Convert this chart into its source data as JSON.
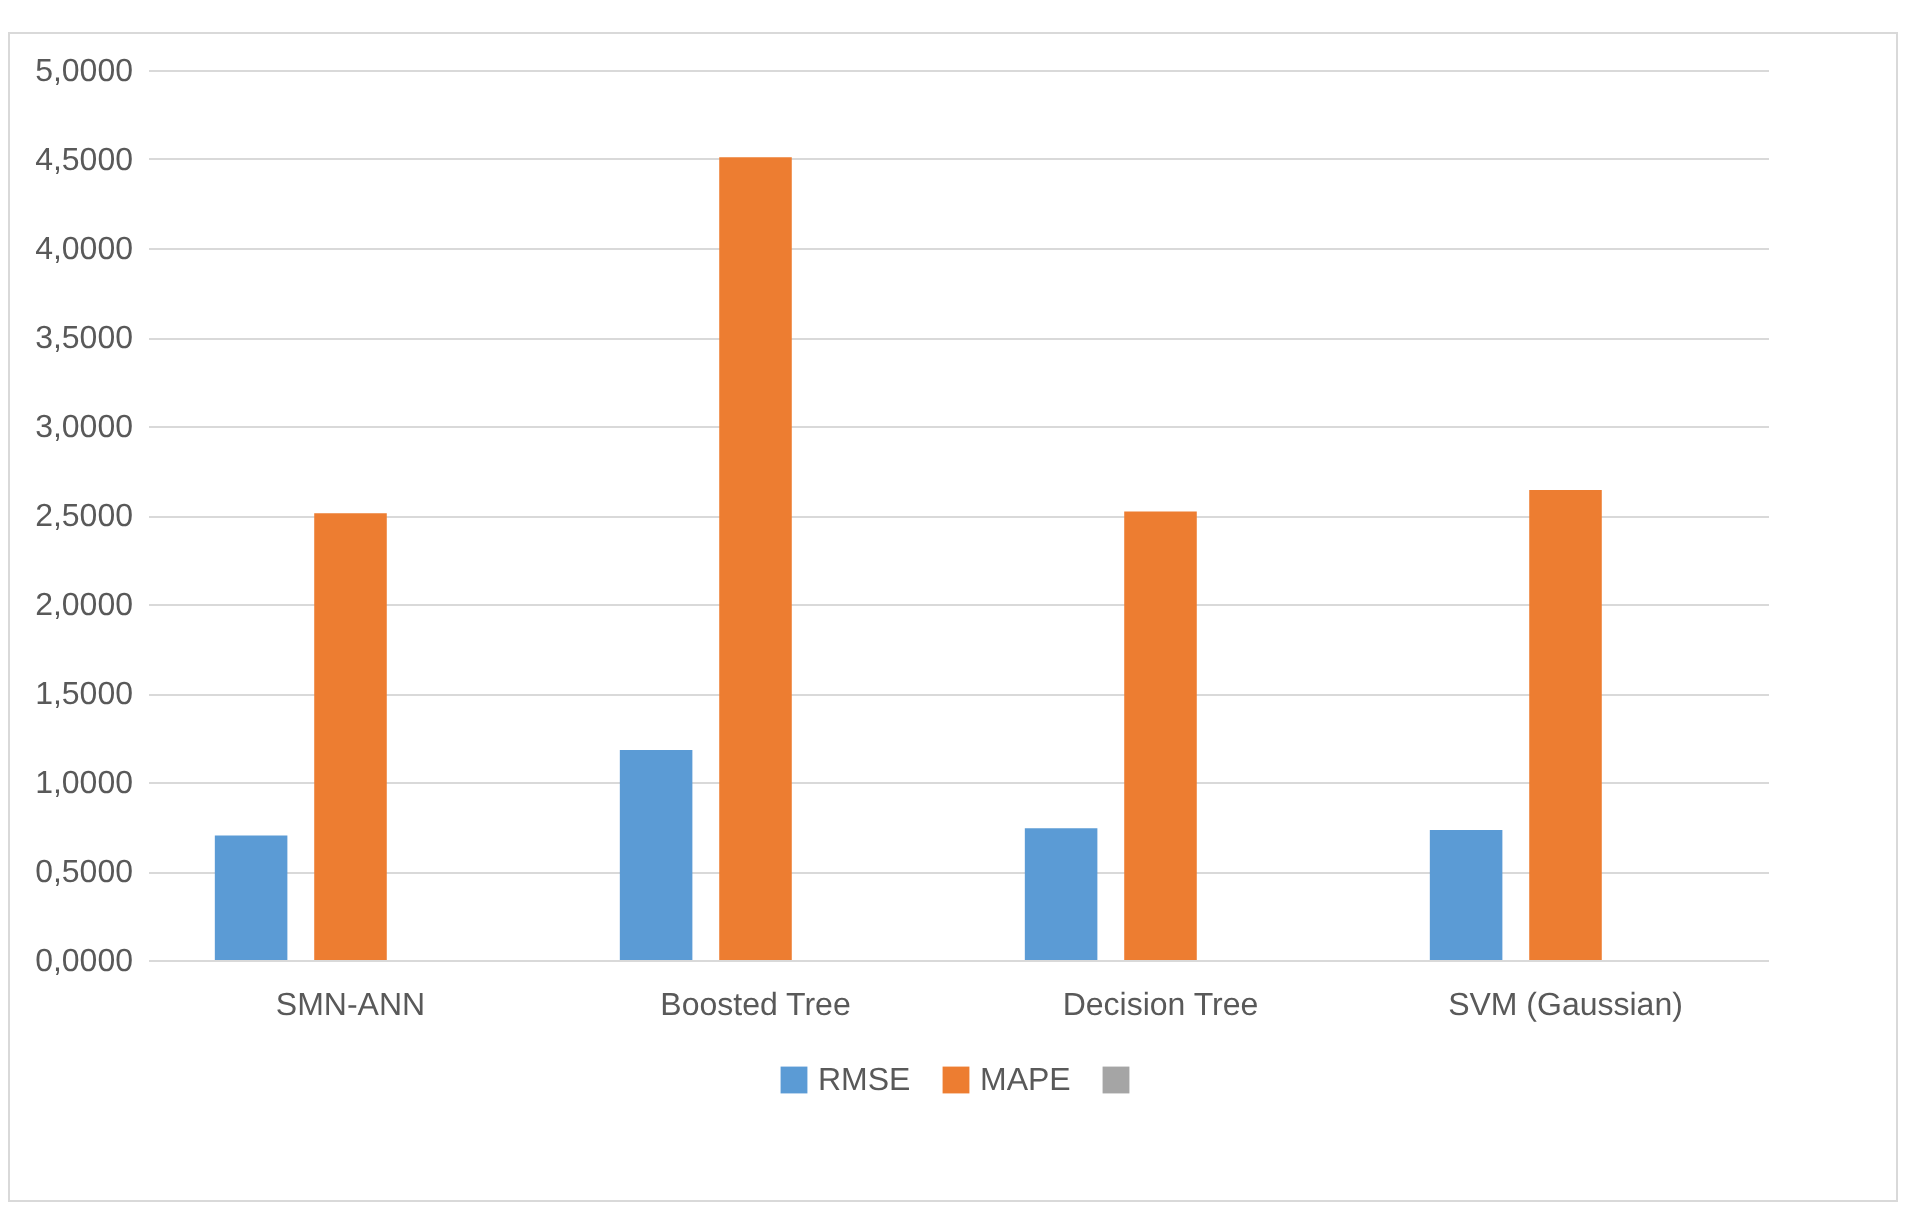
{
  "chart_data": {
    "type": "bar",
    "categories": [
      "SMN-ANN",
      "Boosted Tree",
      "Decision Tree",
      "SVM (Gaussian)"
    ],
    "series": [
      {
        "name": "RMSE",
        "color": "#5b9bd5",
        "values": [
          0.7,
          1.18,
          0.74,
          0.73
        ]
      },
      {
        "name": "MAPE",
        "color": "#ed7d31",
        "values": [
          2.51,
          4.51,
          2.52,
          2.64
        ]
      },
      {
        "color": "#a5a5a5",
        "values": [
          null,
          null,
          null,
          null
        ]
      }
    ],
    "ylim": [
      0,
      5
    ],
    "yticks": [
      {
        "value": 0,
        "label": "0,0000"
      },
      {
        "value": 0.5,
        "label": "0,5000"
      },
      {
        "value": 1,
        "label": "1,0000"
      },
      {
        "value": 1.5,
        "label": "1,5000"
      },
      {
        "value": 2,
        "label": "2,0000"
      },
      {
        "value": 2.5,
        "label": "2,5000"
      },
      {
        "value": 3,
        "label": "3,0000"
      },
      {
        "value": 3.5,
        "label": "3,5000"
      },
      {
        "value": 4,
        "label": "4,0000"
      },
      {
        "value": 4.5,
        "label": "4,5000"
      },
      {
        "value": 5,
        "label": "5,0000"
      }
    ],
    "grid": "y",
    "legend": "bottom"
  }
}
